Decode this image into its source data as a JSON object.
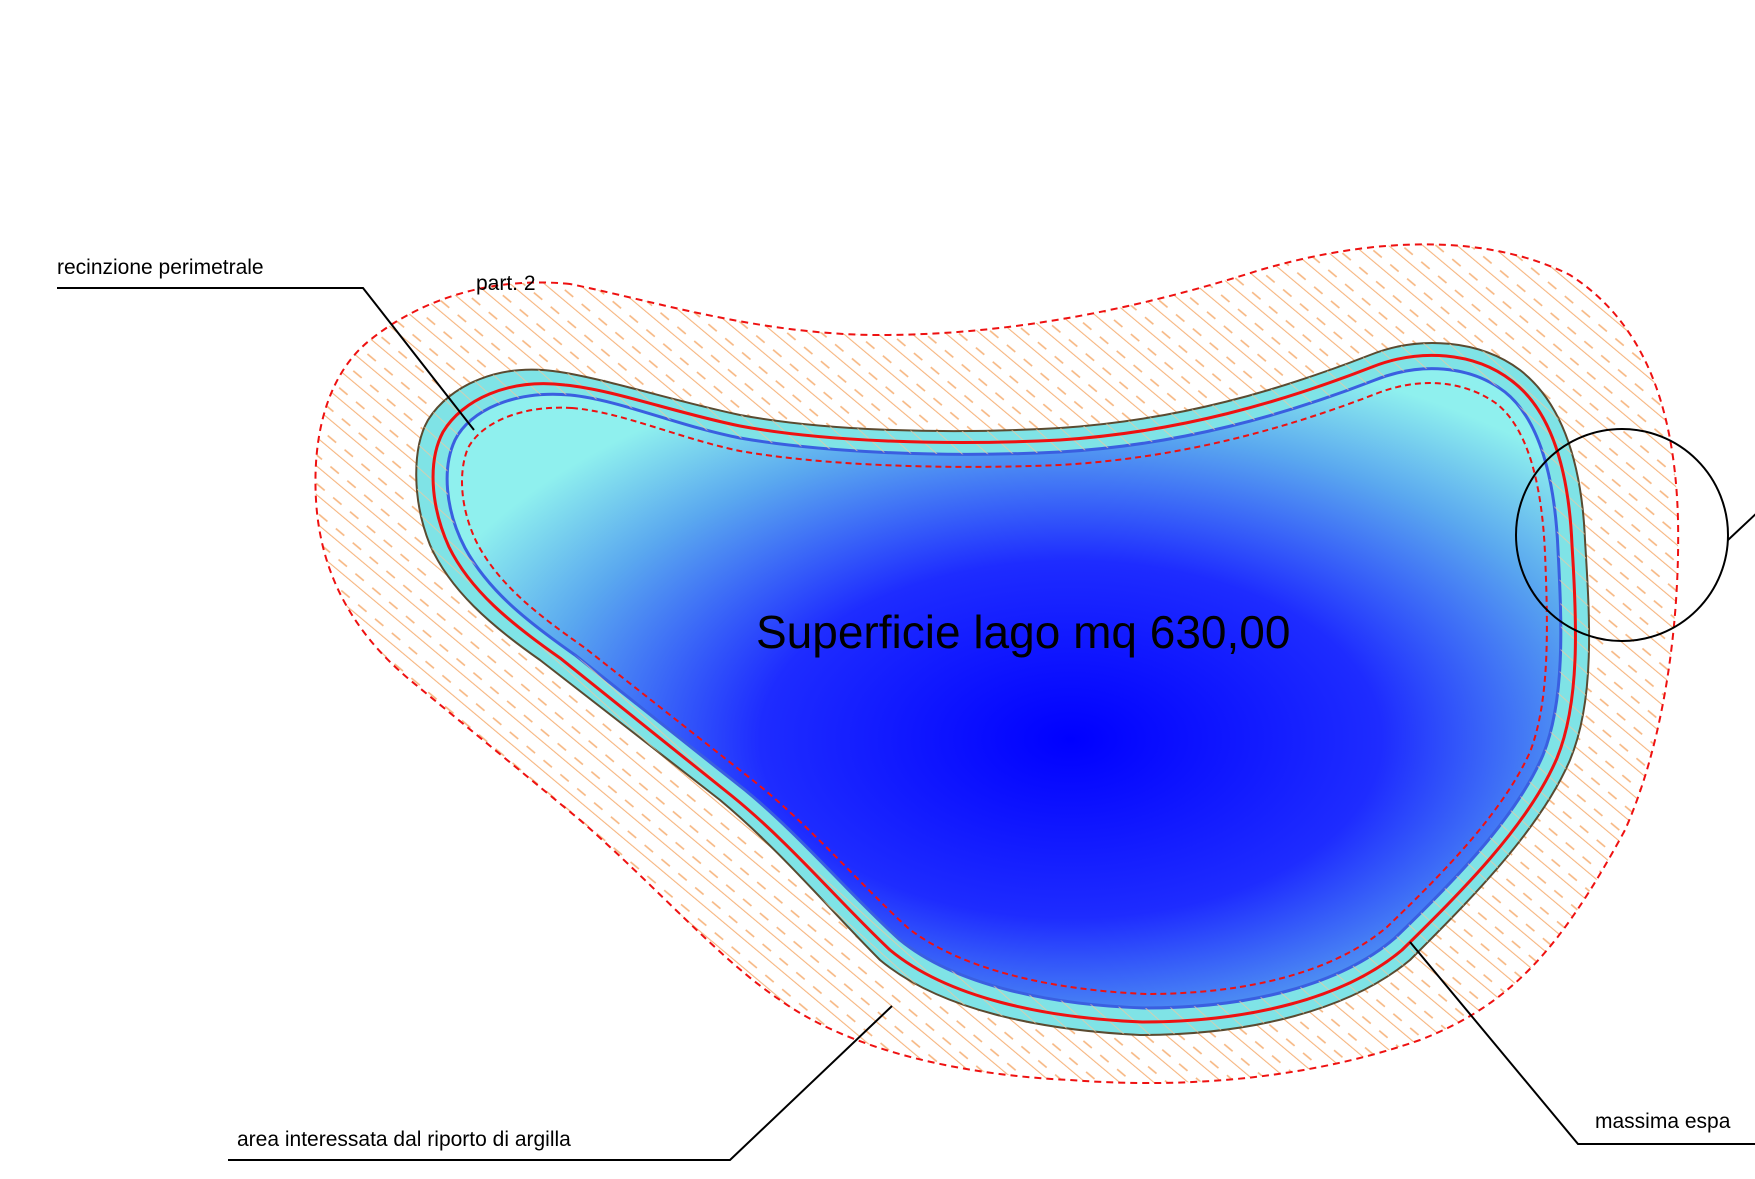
{
  "labels": {
    "fence": "recinzione perimetrale",
    "parcel": "part. 2",
    "lake_area": "Superficie lago mq 630,00",
    "clay_area": "area interessata dal riporto di argilla",
    "max_expansion": "massima espa"
  },
  "colors": {
    "water_deep": "#0000ff",
    "water_light": "#8ff0ee",
    "bank_edge": "#4a6fe8",
    "hatch": "#f6b57f",
    "fence_red": "#ee1111",
    "leader": "#000000"
  }
}
